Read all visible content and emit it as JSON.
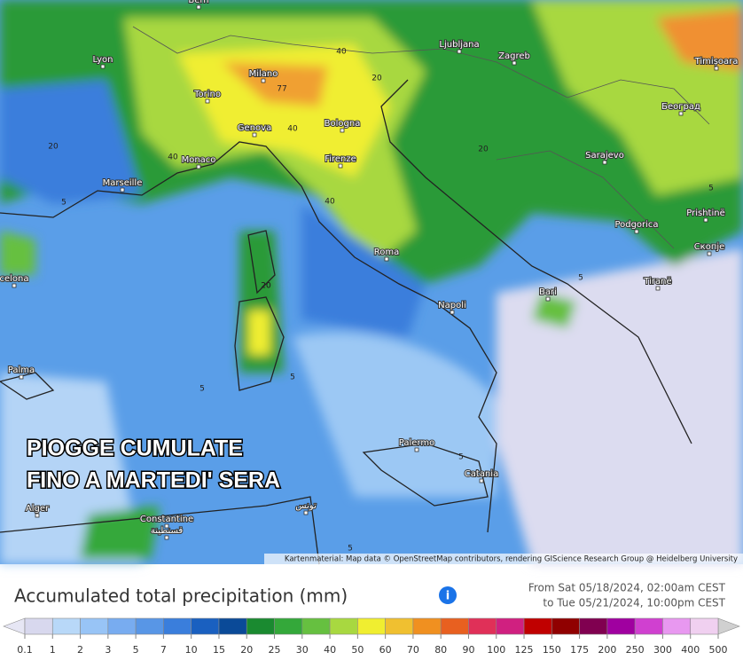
{
  "map": {
    "cities": [
      "Bern",
      "Lyon",
      "Milano",
      "Torino",
      "Genova",
      "Bologna",
      "Monaco",
      "Marseille",
      "Firenze",
      "Ljubljana",
      "Zagreb",
      "Timișoara",
      "Београд",
      "Sarajevo",
      "Podgorica",
      "Prishtinë",
      "Скопје",
      "Tiranë",
      "Roma",
      "Napoli",
      "Bari",
      "Palma",
      "Palermo",
      "Catania",
      "Alger",
      "Constantine",
      "قسنطينة",
      "تونس",
      "celona"
    ],
    "contour_labels": [
      "77",
      "40",
      "40",
      "40",
      "40",
      "20",
      "20",
      "20",
      "20",
      "5",
      "5",
      "5",
      "5",
      "5",
      "5",
      "5",
      "20"
    ],
    "overlay": [
      "PIOGGE CUMULATE",
      "FINO A MARTEDI' SERA"
    ],
    "attribution": "Kartenmaterial: Map data © OpenStreetMap contributors, rendering GIScience Research Group @ Heidelberg University"
  },
  "legend": {
    "title": "Accumulated total precipitation (mm)",
    "info": "i",
    "from": "From Sat 05/18/2024, 02:00am CEST",
    "to": "to Tue 05/21/2024, 10:00pm CEST",
    "values": [
      0.1,
      1,
      2,
      3,
      5,
      7,
      10,
      15,
      20,
      25,
      30,
      40,
      50,
      60,
      70,
      80,
      90,
      100,
      125,
      150,
      175,
      200,
      250,
      300,
      400,
      500
    ],
    "colors": [
      "#d8d8ee",
      "#b8d8f8",
      "#98c4f6",
      "#78acf0",
      "#5896e6",
      "#3a7edc",
      "#1a60c0",
      "#0a4a98",
      "#1a8a30",
      "#34a83a",
      "#66c040",
      "#a8d840",
      "#f0ee30",
      "#f0c030",
      "#f09020",
      "#e86020",
      "#e03058",
      "#d02080",
      "#c00000",
      "#900000",
      "#800050",
      "#a000a0",
      "#d040d0",
      "#e898f0",
      "#f0d0f0"
    ]
  }
}
